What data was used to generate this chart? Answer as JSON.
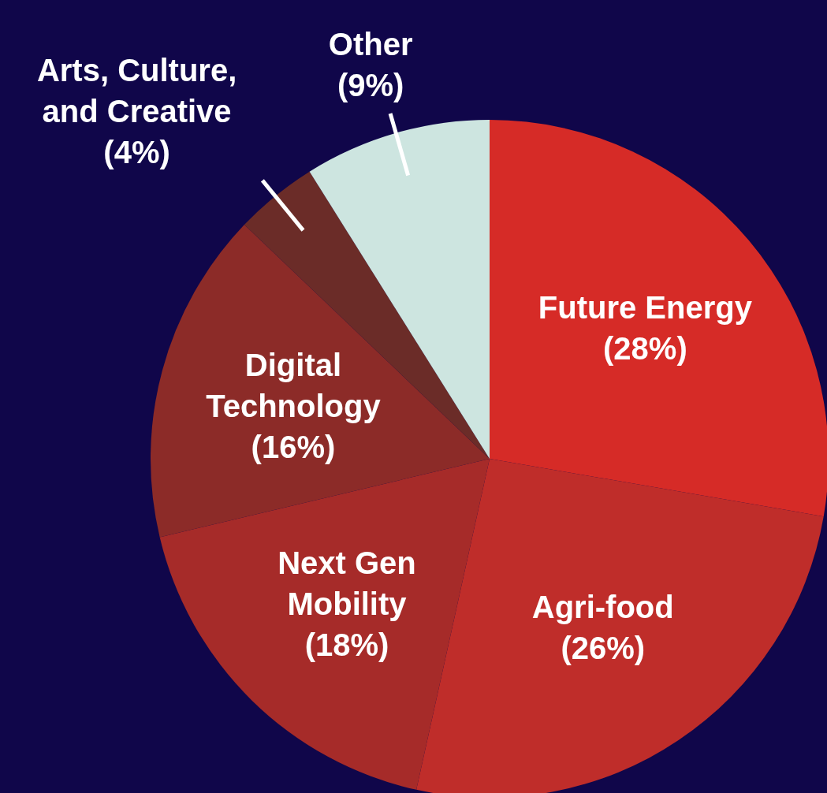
{
  "chart_data": {
    "type": "pie",
    "categories": [
      "Future Energy",
      "Agri-food",
      "Next Gen Mobility",
      "Digital Technology",
      "Arts, Culture, and Creative",
      "Other"
    ],
    "values": [
      28,
      26,
      18,
      16,
      4,
      9
    ],
    "colors": [
      "#d62b27",
      "#bf2d2a",
      "#a62b29",
      "#8c2b28",
      "#6b2c28",
      "#cde5e0"
    ],
    "value_labels": [
      "(28%)",
      "(26%)",
      "(18%)",
      "(16%)",
      "(4%)",
      "(9%)"
    ]
  }
}
